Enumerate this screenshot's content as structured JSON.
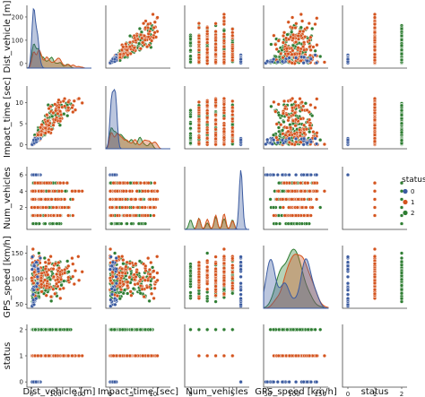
{
  "chart_data": {
    "type": "scatter",
    "kind": "pairplot",
    "variables": [
      "Dist_vehicle [m]",
      "Impact_time [sec]",
      "Num_vehicles",
      "GPS_speed [km/h]",
      "status"
    ],
    "diag_kind": "kde",
    "hue": "status",
    "legend": {
      "title": "status",
      "labels": [
        "0",
        "1",
        "2"
      ],
      "placement": "right"
    },
    "colors": {
      "0": "#3b5ba0",
      "1": "#d4541e",
      "2": "#2e7d32"
    },
    "axes": {
      "Dist_vehicle [m]": {
        "range": [
          -20,
          250
        ],
        "ticks": [
          "0",
          "100",
          "200"
        ]
      },
      "Impact_time [sec]": {
        "range": [
          -1,
          14
        ],
        "ticks": [
          "0",
          "5",
          "10"
        ]
      },
      "Num_vehicles": {
        "range": [
          -0.7,
          7
        ],
        "ticks": [
          "0",
          "5"
        ]
      },
      "GPS_speed [km/h]": {
        "range": [
          42,
          165
        ],
        "ticks": [
          "50",
          "100",
          "150"
        ]
      },
      "status": {
        "range": [
          -0.2,
          2.2
        ],
        "ticks": [
          "0",
          "1",
          "2"
        ]
      }
    },
    "y_ticks": {
      "Dist_vehicle [m]": [
        "0",
        "100",
        "200"
      ],
      "Impact_time [sec]": [
        "0",
        "5",
        "10"
      ],
      "Num_vehicles": [
        "2",
        "4",
        "6"
      ],
      "GPS_speed [km/h]": [
        "50",
        "100",
        "150"
      ],
      "status": [
        "0",
        "1",
        "2"
      ]
    },
    "series": [
      {
        "status": 0,
        "Num_vehicles": [
          6
        ],
        "GPS_speed_range": [
          45,
          145
        ],
        "Dist_vehicle_range": [
          0,
          20
        ]
      },
      {
        "status": 1,
        "Num_vehicles": [
          1,
          2,
          3,
          4,
          5
        ],
        "GPS_speed_range": [
          60,
          160
        ],
        "Dist_vehicle_range": [
          0,
          230
        ]
      },
      {
        "status": 2,
        "Num_vehicles": [
          0,
          1,
          2,
          3,
          4,
          5
        ],
        "GPS_speed_range": [
          55,
          150
        ],
        "Dist_vehicle_range": [
          0,
          220
        ]
      }
    ]
  }
}
